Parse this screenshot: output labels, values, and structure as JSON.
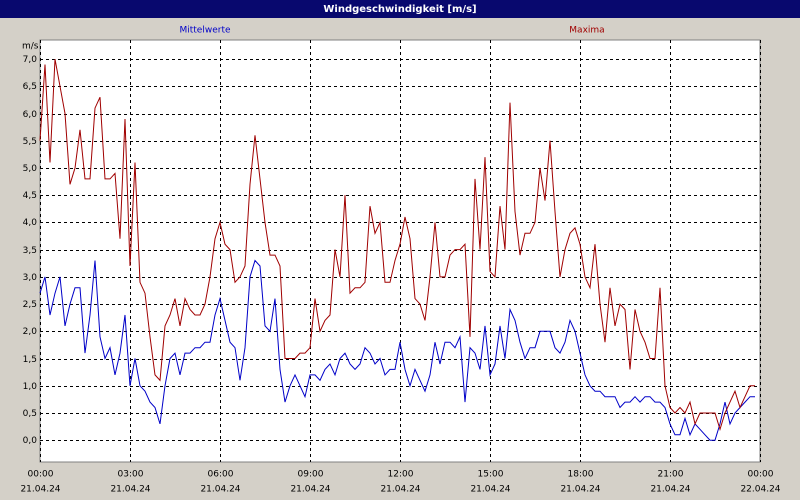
{
  "chart_data": {
    "type": "line",
    "title": "Windgeschwindigkeit [m/s]",
    "y_label": "m/s",
    "xlim": [
      0,
      1440
    ],
    "xticks": [
      {
        "value": 0,
        "label": "00:00",
        "date": "21.04.24"
      },
      {
        "value": 180,
        "label": "03:00",
        "date": "21.04.24"
      },
      {
        "value": 360,
        "label": "06:00",
        "date": "21.04.24"
      },
      {
        "value": 540,
        "label": "09:00",
        "date": "21.04.24"
      },
      {
        "value": 720,
        "label": "12:00",
        "date": "21.04.24"
      },
      {
        "value": 900,
        "label": "15:00",
        "date": "21.04.24"
      },
      {
        "value": 1080,
        "label": "18:00",
        "date": "21.04.24"
      },
      {
        "value": 1260,
        "label": "21:00",
        "date": "21.04.24"
      },
      {
        "value": 1440,
        "label": "00:00",
        "date": "22.04.24"
      }
    ],
    "ylim": [
      -0.4,
      7.35
    ],
    "yticks": [
      {
        "value": 0,
        "label": "0,0"
      },
      {
        "value": 0.5,
        "label": "0,5"
      },
      {
        "value": 1,
        "label": "1,0"
      },
      {
        "value": 1.5,
        "label": "1,5"
      },
      {
        "value": 2,
        "label": "2,0"
      },
      {
        "value": 2.5,
        "label": "2,5"
      },
      {
        "value": 3,
        "label": "3,0"
      },
      {
        "value": 3.5,
        "label": "3,5"
      },
      {
        "value": 4,
        "label": "4,0"
      },
      {
        "value": 4.5,
        "label": "4,5"
      },
      {
        "value": 5,
        "label": "5,0"
      },
      {
        "value": 5.5,
        "label": "5,5"
      },
      {
        "value": 6,
        "label": "6,0"
      },
      {
        "value": 6.5,
        "label": "6,5"
      },
      {
        "value": 7,
        "label": "7,0"
      }
    ],
    "grid": true,
    "x": [
      0,
      10,
      20,
      30,
      40,
      50,
      60,
      70,
      80,
      90,
      100,
      110,
      120,
      130,
      140,
      150,
      160,
      170,
      180,
      190,
      200,
      210,
      220,
      230,
      240,
      250,
      260,
      270,
      280,
      290,
      300,
      310,
      320,
      330,
      340,
      350,
      360,
      370,
      380,
      390,
      400,
      410,
      420,
      430,
      440,
      450,
      460,
      470,
      480,
      490,
      500,
      510,
      520,
      530,
      540,
      550,
      560,
      570,
      580,
      590,
      600,
      610,
      620,
      630,
      640,
      650,
      660,
      670,
      680,
      690,
      700,
      710,
      720,
      730,
      740,
      750,
      760,
      770,
      780,
      790,
      800,
      810,
      820,
      830,
      840,
      850,
      860,
      870,
      880,
      890,
      900,
      910,
      920,
      930,
      940,
      950,
      960,
      970,
      980,
      990,
      1000,
      1010,
      1020,
      1030,
      1040,
      1050,
      1060,
      1070,
      1080,
      1090,
      1100,
      1110,
      1120,
      1130,
      1140,
      1150,
      1160,
      1170,
      1180,
      1190,
      1200,
      1210,
      1220,
      1230,
      1240,
      1250,
      1260,
      1270,
      1280,
      1290,
      1300,
      1310,
      1320,
      1330,
      1340,
      1350,
      1360,
      1370,
      1380,
      1390,
      1400,
      1410,
      1420,
      1430
    ],
    "series": [
      {
        "name": "Mittelwerte",
        "color": "#0000c8",
        "values": [
          2.7,
          3.0,
          2.3,
          2.7,
          3.0,
          2.1,
          2.5,
          2.8,
          2.8,
          1.6,
          2.3,
          3.3,
          1.9,
          1.5,
          1.7,
          1.2,
          1.6,
          2.3,
          1.0,
          1.5,
          1.0,
          0.9,
          0.7,
          0.6,
          0.3,
          1.0,
          1.5,
          1.6,
          1.2,
          1.6,
          1.6,
          1.7,
          1.7,
          1.8,
          1.8,
          2.3,
          2.6,
          2.2,
          1.8,
          1.7,
          1.1,
          1.7,
          3.0,
          3.3,
          3.2,
          2.1,
          2.0,
          2.6,
          1.3,
          0.7,
          1.0,
          1.2,
          1.0,
          0.8,
          1.2,
          1.2,
          1.1,
          1.3,
          1.4,
          1.2,
          1.5,
          1.6,
          1.4,
          1.3,
          1.4,
          1.7,
          1.6,
          1.4,
          1.5,
          1.2,
          1.3,
          1.3,
          1.8,
          1.3,
          1.0,
          1.3,
          1.1,
          0.9,
          1.2,
          1.8,
          1.4,
          1.8,
          1.8,
          1.7,
          1.9,
          0.7,
          1.7,
          1.6,
          1.3,
          2.1,
          1.2,
          1.4,
          2.1,
          1.5,
          2.4,
          2.2,
          1.8,
          1.5,
          1.7,
          1.7,
          2.0,
          2.0,
          2.0,
          1.7,
          1.6,
          1.8,
          2.2,
          2.0,
          1.6,
          1.2,
          1.0,
          0.9,
          0.9,
          0.8,
          0.8,
          0.8,
          0.6,
          0.7,
          0.7,
          0.8,
          0.7,
          0.8,
          0.8,
          0.7,
          0.7,
          0.6,
          0.3,
          0.1,
          0.1,
          0.4,
          0.1,
          0.3,
          0.2,
          0.1,
          0.0,
          0.0,
          0.3,
          0.7,
          0.3,
          0.5,
          0.6,
          0.7,
          0.8,
          0.8
        ]
      },
      {
        "name": "Maxima",
        "color": "#a00000",
        "values": [
          5.5,
          6.9,
          5.1,
          7.0,
          6.5,
          6.0,
          4.7,
          5.0,
          5.7,
          4.8,
          4.8,
          6.1,
          6.3,
          4.8,
          4.8,
          4.9,
          3.7,
          5.9,
          3.2,
          5.1,
          2.9,
          2.7,
          1.9,
          1.2,
          1.1,
          2.1,
          2.3,
          2.6,
          2.1,
          2.6,
          2.4,
          2.3,
          2.3,
          2.5,
          3.0,
          3.7,
          4.0,
          3.6,
          3.5,
          2.9,
          3.0,
          3.2,
          4.7,
          5.6,
          4.8,
          4.0,
          3.4,
          3.4,
          3.2,
          1.5,
          1.5,
          1.5,
          1.6,
          1.6,
          1.7,
          2.6,
          2.0,
          2.2,
          2.3,
          3.5,
          3.0,
          4.5,
          2.7,
          2.8,
          2.8,
          2.9,
          4.3,
          3.8,
          4.0,
          2.9,
          2.9,
          3.3,
          3.6,
          4.1,
          3.7,
          2.6,
          2.5,
          2.2,
          3.0,
          4.0,
          3.0,
          3.0,
          3.4,
          3.5,
          3.5,
          3.6,
          1.9,
          4.8,
          3.5,
          5.2,
          3.1,
          3.0,
          4.3,
          3.5,
          6.2,
          4.2,
          3.4,
          3.8,
          3.8,
          4.0,
          5.0,
          4.4,
          5.5,
          4.2,
          3.0,
          3.5,
          3.8,
          3.9,
          3.6,
          3.0,
          2.8,
          3.6,
          2.5,
          1.8,
          2.8,
          2.1,
          2.5,
          2.4,
          1.3,
          2.4,
          2.0,
          1.8,
          1.5,
          1.5,
          2.8,
          1.0,
          0.6,
          0.5,
          0.6,
          0.5,
          0.7,
          0.3,
          0.5,
          0.5,
          0.5,
          0.5,
          0.2,
          0.5,
          0.7,
          0.9,
          0.6,
          0.8,
          1.0,
          1.0
        ]
      }
    ]
  }
}
